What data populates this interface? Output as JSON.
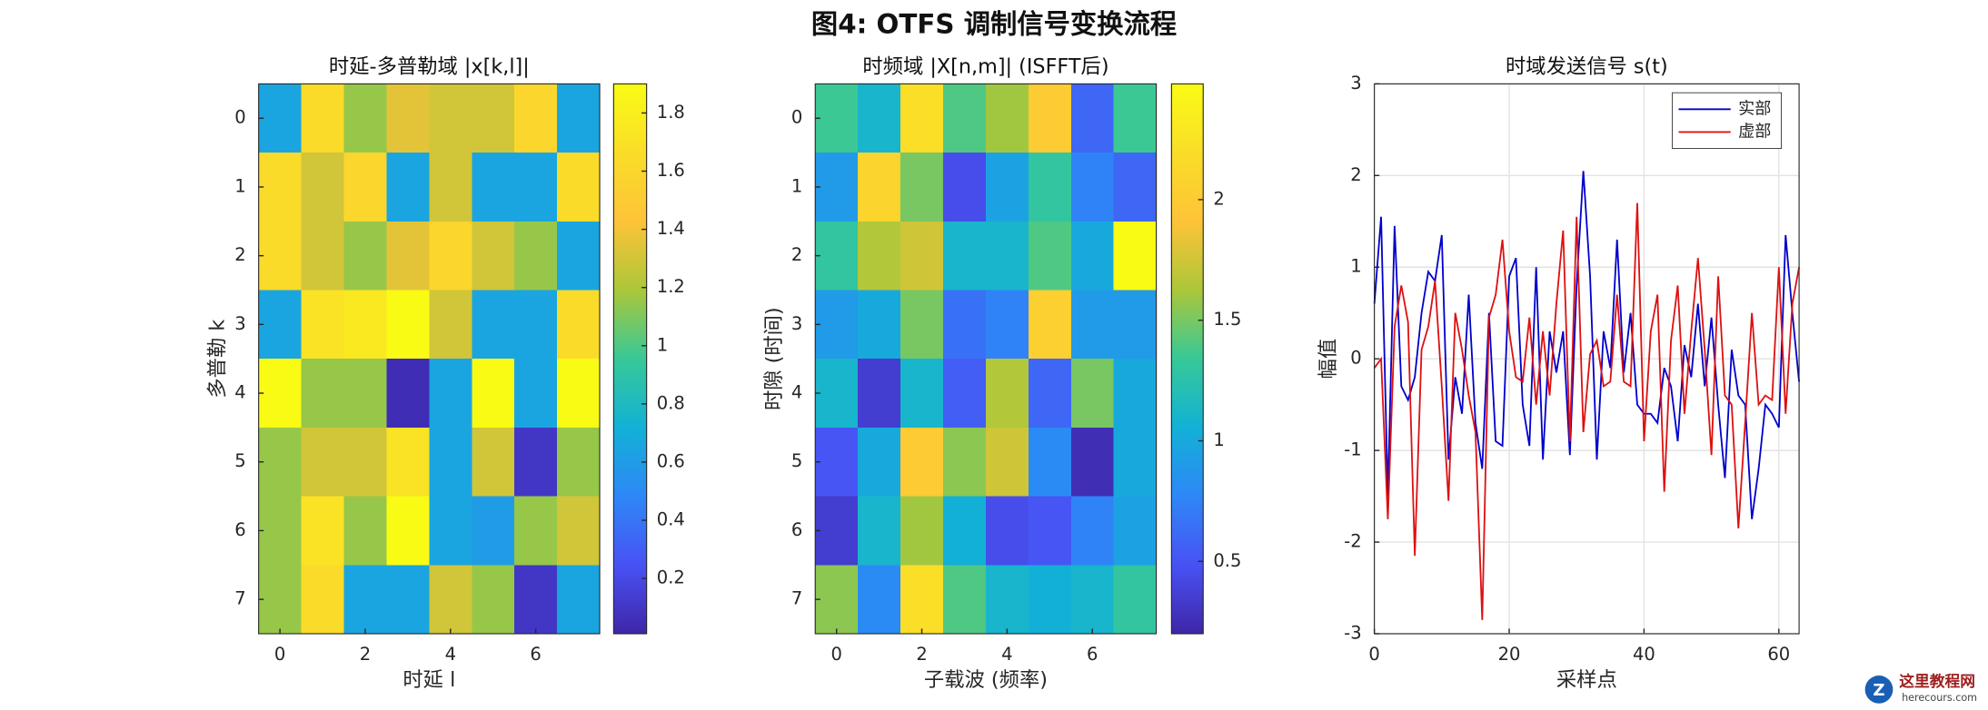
{
  "title": "图4: OTFS 调制信号变换流程",
  "watermark": {
    "text": "这里教程网",
    "url": "herecours.com"
  },
  "chart_data": [
    {
      "type": "heatmap",
      "title": "时延-多普勒域 |x[k,l]|",
      "xlabel": "时延 l",
      "ylabel": "多普勒 k",
      "colormap": "parula",
      "xlim": [
        -0.5,
        7.5
      ],
      "xticks": [
        0,
        2,
        4,
        6
      ],
      "ylim": [
        7.5,
        -0.5
      ],
      "yticks": [
        0,
        1,
        2,
        3,
        4,
        5,
        6,
        7
      ],
      "clim": [
        0.01,
        1.9
      ],
      "cticks": [
        0.2,
        0.4,
        0.6,
        0.8,
        1,
        1.2,
        1.4,
        1.6,
        1.8
      ],
      "values": [
        [
          0.65,
          1.65,
          1.15,
          1.35,
          1.3,
          1.3,
          1.6,
          0.65
        ],
        [
          1.65,
          1.3,
          1.6,
          0.65,
          1.3,
          0.65,
          0.65,
          1.65
        ],
        [
          1.65,
          1.3,
          1.15,
          1.35,
          1.6,
          1.3,
          1.15,
          0.65
        ],
        [
          0.65,
          1.7,
          1.75,
          1.9,
          1.3,
          0.65,
          0.65,
          1.65
        ],
        [
          1.9,
          1.15,
          1.15,
          0.05,
          0.65,
          1.9,
          0.65,
          1.9
        ],
        [
          1.15,
          1.3,
          1.3,
          1.7,
          0.65,
          1.3,
          0.1,
          1.15
        ],
        [
          1.15,
          1.7,
          1.15,
          1.9,
          0.65,
          0.6,
          1.15,
          1.3
        ],
        [
          1.15,
          1.65,
          0.65,
          0.65,
          1.3,
          1.15,
          0.1,
          0.65
        ]
      ]
    },
    {
      "type": "heatmap",
      "title": "时频域 |X[n,m]| (ISFFT后)",
      "xlabel": "子载波 (频率)",
      "ylabel": "时隙 (时间)",
      "colormap": "parula",
      "xlim": [
        -0.5,
        7.5
      ],
      "xticks": [
        0,
        2,
        4,
        6
      ],
      "ylim": [
        7.5,
        -0.5
      ],
      "yticks": [
        0,
        1,
        2,
        3,
        4,
        5,
        6,
        7
      ],
      "clim": [
        0.2,
        2.48
      ],
      "cticks": [
        0.5,
        1,
        1.5,
        2
      ],
      "values": [
        [
          1.35,
          1.1,
          2.2,
          1.4,
          1.6,
          2.0,
          0.6,
          1.35
        ],
        [
          0.9,
          2.1,
          1.5,
          0.45,
          0.95,
          1.3,
          0.75,
          0.6
        ],
        [
          1.3,
          1.65,
          1.75,
          1.1,
          1.1,
          1.4,
          1.0,
          2.48
        ],
        [
          0.9,
          1.0,
          1.5,
          0.65,
          0.75,
          2.05,
          0.9,
          0.9
        ],
        [
          1.1,
          0.35,
          1.1,
          0.55,
          1.65,
          0.6,
          1.5,
          1.0
        ],
        [
          0.5,
          1.0,
          2.0,
          1.55,
          1.75,
          0.8,
          0.25,
          1.0
        ],
        [
          0.35,
          1.1,
          1.6,
          1.05,
          0.45,
          0.5,
          0.75,
          0.95
        ],
        [
          1.55,
          0.8,
          2.2,
          1.4,
          1.1,
          1.05,
          1.1,
          1.3
        ]
      ]
    },
    {
      "type": "line",
      "title": "时域发送信号 s(t)",
      "xlabel": "采样点",
      "ylabel": "幅值",
      "xlim": [
        0,
        63
      ],
      "xticks": [
        0,
        20,
        40,
        60
      ],
      "ylim": [
        -3,
        3
      ],
      "yticks": [
        -3,
        -2,
        -1,
        0,
        1,
        2,
        3
      ],
      "grid": true,
      "legend": "northeast",
      "x": [
        0,
        1,
        2,
        3,
        4,
        5,
        6,
        7,
        8,
        9,
        10,
        11,
        12,
        13,
        14,
        15,
        16,
        17,
        18,
        19,
        20,
        21,
        22,
        23,
        24,
        25,
        26,
        27,
        28,
        29,
        30,
        31,
        32,
        33,
        34,
        35,
        36,
        37,
        38,
        39,
        40,
        41,
        42,
        43,
        44,
        45,
        46,
        47,
        48,
        49,
        50,
        51,
        52,
        53,
        54,
        55,
        56,
        57,
        58,
        59,
        60,
        61,
        62,
        63
      ],
      "series": [
        {
          "name": "实部",
          "color": "#0000cc",
          "values": [
            0.6,
            1.55,
            -1.5,
            1.45,
            -0.3,
            -0.45,
            -0.2,
            0.5,
            0.95,
            0.85,
            1.35,
            -1.1,
            -0.2,
            -0.6,
            0.7,
            -0.7,
            -1.2,
            0.5,
            -0.9,
            -0.95,
            0.9,
            1.1,
            -0.5,
            -0.95,
            1.0,
            -1.1,
            0.3,
            -0.15,
            0.3,
            -1.05,
            0.8,
            2.05,
            0.9,
            -1.1,
            0.3,
            -0.1,
            1.3,
            -0.15,
            0.5,
            -0.5,
            -0.6,
            -0.6,
            -0.7,
            -0.1,
            -0.3,
            -0.9,
            0.15,
            -0.2,
            0.6,
            -0.3,
            0.45,
            -0.5,
            -1.3,
            0.1,
            -0.4,
            -0.5,
            -1.75,
            -1.2,
            -0.5,
            -0.6,
            -0.75,
            1.35,
            0.5,
            -0.25
          ]
        },
        {
          "name": "虚部",
          "color": "#dd1111",
          "values": [
            -0.1,
            0.0,
            -1.75,
            0.35,
            0.8,
            0.4,
            -2.15,
            0.1,
            0.35,
            0.85,
            -0.3,
            -1.55,
            0.5,
            0.1,
            -0.4,
            -0.8,
            -2.85,
            0.45,
            0.7,
            1.3,
            0.3,
            -0.2,
            -0.25,
            0.45,
            -0.5,
            0.3,
            -0.4,
            0.6,
            1.4,
            -0.9,
            1.55,
            -0.8,
            0.05,
            0.2,
            -0.3,
            -0.25,
            0.7,
            -0.25,
            -0.3,
            1.7,
            -0.9,
            0.3,
            0.7,
            -1.45,
            0.2,
            0.8,
            -0.6,
            0.3,
            1.1,
            0.1,
            -1.05,
            0.9,
            -0.4,
            -0.5,
            -1.85,
            -0.7,
            0.5,
            -0.5,
            -0.4,
            -0.45,
            1.0,
            -0.6,
            0.6,
            1.0
          ]
        }
      ]
    }
  ]
}
